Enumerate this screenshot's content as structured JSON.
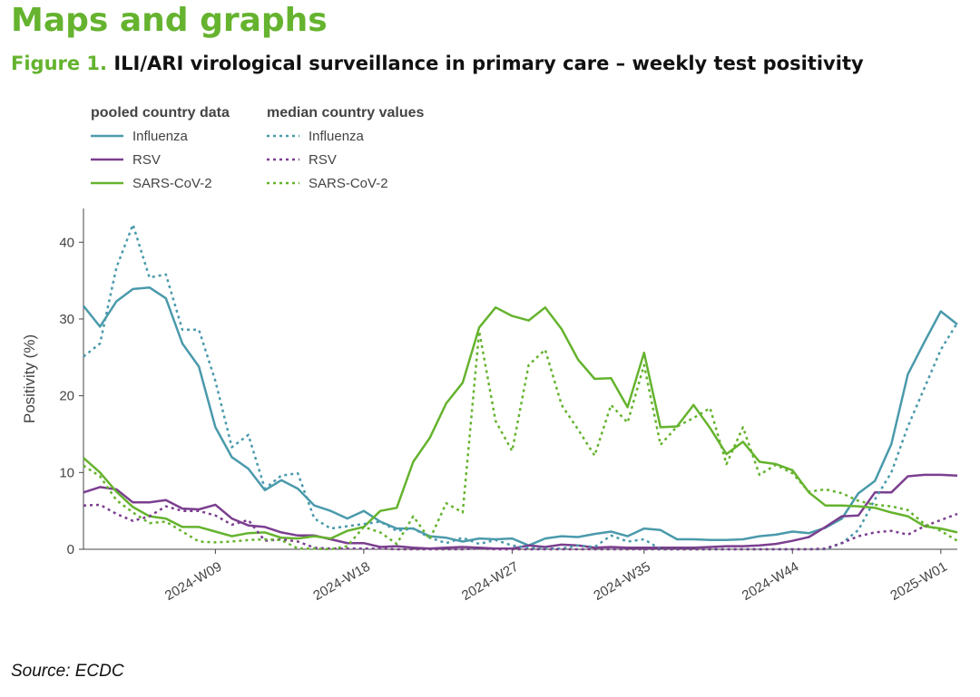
{
  "header": {
    "title": "Maps and graphs",
    "figure_label": "Figure 1.",
    "figure_title": "ILI/ARI virological surveillance in primary care – weekly test positivity"
  },
  "source": "Source: ECDC",
  "chart_data": {
    "type": "line",
    "y_label": "Positivity (%)",
    "legend_groups": [
      {
        "title": "pooled country data",
        "dash": "solid"
      },
      {
        "title": "median country values",
        "dash": "dot"
      }
    ],
    "x": [
      1,
      2,
      3,
      4,
      5,
      6,
      7,
      8,
      9,
      10,
      11,
      12,
      13,
      14,
      15,
      16,
      17,
      18,
      19,
      20,
      21,
      22,
      23,
      24,
      25,
      26,
      27,
      28,
      29,
      30,
      31,
      32,
      33,
      34,
      35,
      36,
      37,
      38,
      39,
      40,
      41,
      42,
      43,
      44,
      45,
      46,
      47,
      48,
      49,
      50,
      51,
      52,
      53,
      54
    ],
    "xlim": [
      1,
      54
    ],
    "xticks": [
      {
        "value": 9,
        "label": "2024-W09"
      },
      {
        "value": 18,
        "label": "2024-W18"
      },
      {
        "value": 27,
        "label": "2024-W27"
      },
      {
        "value": 35,
        "label": "2024-W35"
      },
      {
        "value": 44,
        "label": "2024-W44"
      },
      {
        "value": 53,
        "label": "2025-W01"
      }
    ],
    "ylim": [
      0,
      44.4
    ],
    "yticks": [
      0,
      10,
      20,
      30,
      40
    ],
    "grid": false,
    "series": [
      {
        "name": "Influenza",
        "color": "#4a9aab",
        "dash": "solid",
        "values": [
          31.7,
          29,
          32.3,
          33.9,
          34.1,
          32.7,
          26.8,
          23.8,
          15.9,
          12,
          10.5,
          7.7,
          9,
          7.9,
          5.7,
          5,
          4,
          5,
          3.6,
          2.7,
          2.7,
          1.7,
          1.5,
          1,
          1.4,
          1.3,
          1.4,
          0.5,
          1.4,
          1.7,
          1.6,
          2,
          2.3,
          1.7,
          2.7,
          2.5,
          1.3,
          1.3,
          1.2,
          1.2,
          1.3,
          1.7,
          1.9,
          2.3,
          2.1,
          2.8,
          4,
          7.3,
          8.9,
          13.7,
          22.8,
          27,
          31,
          29.3
        ]
      },
      {
        "name": "RSV",
        "color": "#7b3f8f",
        "dash": "solid",
        "values": [
          7.4,
          8.1,
          7.8,
          6.1,
          6.1,
          6.4,
          5.3,
          5.2,
          5.8,
          4,
          3.1,
          2.9,
          2.2,
          1.8,
          1.8,
          1.3,
          0.8,
          0.8,
          0.3,
          0.4,
          0.2,
          0.1,
          0.2,
          0.3,
          0.2,
          0.1,
          0.1,
          0.5,
          0.3,
          0.6,
          0.5,
          0.2,
          0.3,
          0.2,
          0.2,
          0.2,
          0.2,
          0.2,
          0.3,
          0.4,
          0.4,
          0.5,
          0.7,
          1.1,
          1.6,
          2.9,
          4.3,
          4.4,
          7.4,
          7.4,
          9.5,
          9.7,
          9.7,
          9.6
        ]
      },
      {
        "name": "SARS-CoV-2",
        "color": "#65b32e",
        "dash": "solid",
        "values": [
          11.9,
          10,
          7.5,
          5.5,
          4.3,
          4,
          2.9,
          2.9,
          2.3,
          1.7,
          2.1,
          2.2,
          1.5,
          1.4,
          1.7,
          1.4,
          2.4,
          2.9,
          5,
          5.4,
          11.4,
          14.5,
          19,
          21.7,
          28.9,
          31.5,
          30.4,
          29.8,
          31.5,
          28.7,
          24.7,
          22.2,
          22.3,
          18.5,
          25.6,
          15.9,
          16,
          18.8,
          15.8,
          12.4,
          14,
          11.4,
          11.1,
          10.3,
          7.4,
          5.7,
          5.7,
          5.6,
          5.4,
          4.8,
          4.3,
          3,
          2.7,
          2.2
        ]
      },
      {
        "name": "Influenza",
        "color": "#4a9aab",
        "dash": "dot",
        "values": [
          25.1,
          26.8,
          36.7,
          42.3,
          35.4,
          35.8,
          28.6,
          28.6,
          21.9,
          13.3,
          14.9,
          7.9,
          9.6,
          9.9,
          4,
          2.7,
          3,
          3.3,
          3.6,
          2.4,
          2.7,
          1.5,
          0.8,
          1.5,
          0.7,
          1.2,
          0.5,
          0.2,
          0.1,
          0.1,
          0.5,
          0.3,
          1.8,
          1,
          1.3,
          0,
          0,
          0,
          0,
          0,
          0,
          0,
          0,
          0,
          0,
          0,
          0.8,
          2.5,
          6.5,
          10,
          16,
          21,
          26,
          29.5
        ]
      },
      {
        "name": "RSV",
        "color": "#7b3f8f",
        "dash": "dot",
        "values": [
          5.7,
          5.8,
          4.6,
          3.7,
          4.3,
          5.6,
          5,
          5,
          4.4,
          3.2,
          3.8,
          1.1,
          1.3,
          1,
          0.2,
          0.1,
          0.1,
          0.1,
          0.1,
          0,
          0,
          0,
          0,
          0,
          0.1,
          0,
          0,
          0,
          0,
          0,
          0,
          0,
          0,
          0,
          0,
          0,
          0,
          0,
          0,
          0,
          0,
          0,
          0,
          0,
          0,
          0.1,
          0.8,
          1.7,
          2.2,
          2.4,
          1.9,
          3,
          3.8,
          4.6
        ]
      },
      {
        "name": "SARS-CoV-2",
        "color": "#65b32e",
        "dash": "dot",
        "values": [
          10.9,
          9.5,
          6.4,
          4.8,
          3.4,
          3.6,
          2.3,
          1,
          0.9,
          1,
          1.2,
          1.3,
          1.2,
          0.1,
          0.1,
          0,
          0.4,
          2.9,
          2.2,
          0.7,
          4.3,
          1.3,
          6,
          4.8,
          28.4,
          16.7,
          12.8,
          24,
          26,
          18.8,
          15.6,
          12.2,
          18.8,
          16.5,
          24,
          13.6,
          16,
          17.1,
          18.4,
          11.1,
          15.9,
          9.7,
          11,
          9.9,
          7.5,
          7.8,
          7.3,
          6.3,
          5.8,
          5.6,
          5.1,
          3.3,
          2.4,
          1.1
        ]
      }
    ]
  }
}
